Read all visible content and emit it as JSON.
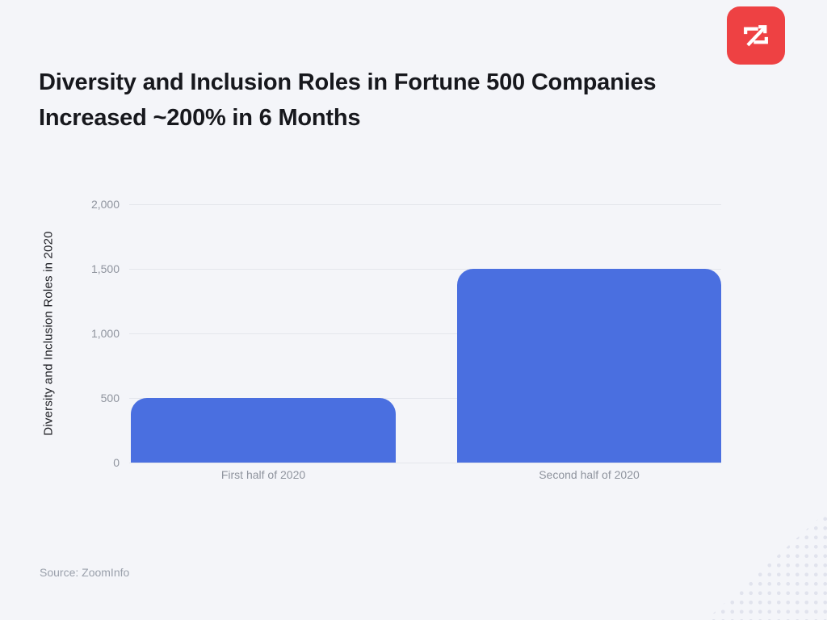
{
  "header": {
    "title_line1": "Diversity and Inclusion Roles in Fortune 500 Companies",
    "title_line2": "Increased ~200% in 6 Months",
    "logo": {
      "name": "zoominfo-logo",
      "background": "#ee4143"
    }
  },
  "chart_data": {
    "type": "bar",
    "categories": [
      "First half of 2020",
      "Second half of 2020"
    ],
    "values": [
      500,
      1500
    ],
    "title": "Diversity and Inclusion Roles in Fortune 500 Companies Increased ~200% in 6 Months",
    "xlabel": "",
    "ylabel": "Diversity and Inclusion Roles in 2020",
    "ylim": [
      0,
      2000
    ],
    "yticks": [
      0,
      500,
      1000,
      1500,
      2000
    ],
    "ytick_labels": [
      "0",
      "500",
      "1,000",
      "1,500",
      "2,000"
    ],
    "grid": true,
    "legend": "none",
    "bar_color": "#4a6fe0",
    "gridline_color": "#e4e6ec"
  },
  "footer": {
    "source": "Source: ZoomInfo"
  }
}
